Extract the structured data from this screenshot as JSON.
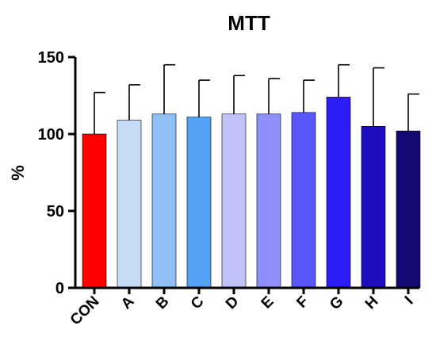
{
  "chart_data": {
    "type": "bar",
    "title": "MTT",
    "xlabel": "",
    "ylabel": "%",
    "ylim": [
      0,
      150
    ],
    "yticks": [
      0,
      50,
      100,
      150
    ],
    "categories": [
      "CON",
      "A",
      "B",
      "C",
      "D",
      "E",
      "F",
      "G",
      "H",
      "I"
    ],
    "values": [
      100,
      109,
      113,
      111,
      113,
      113,
      114,
      124,
      105,
      102
    ],
    "error_upper": [
      27,
      23,
      32,
      24,
      25,
      23,
      21,
      21,
      38,
      24
    ],
    "colors": [
      "#ff0000",
      "#c6dcf6",
      "#90bff5",
      "#55a2f5",
      "#c2c2fb",
      "#8e8ff8",
      "#5a58fd",
      "#2c1cf8",
      "#1c0dbf",
      "#120a72"
    ],
    "grid": false,
    "legend": "none"
  }
}
